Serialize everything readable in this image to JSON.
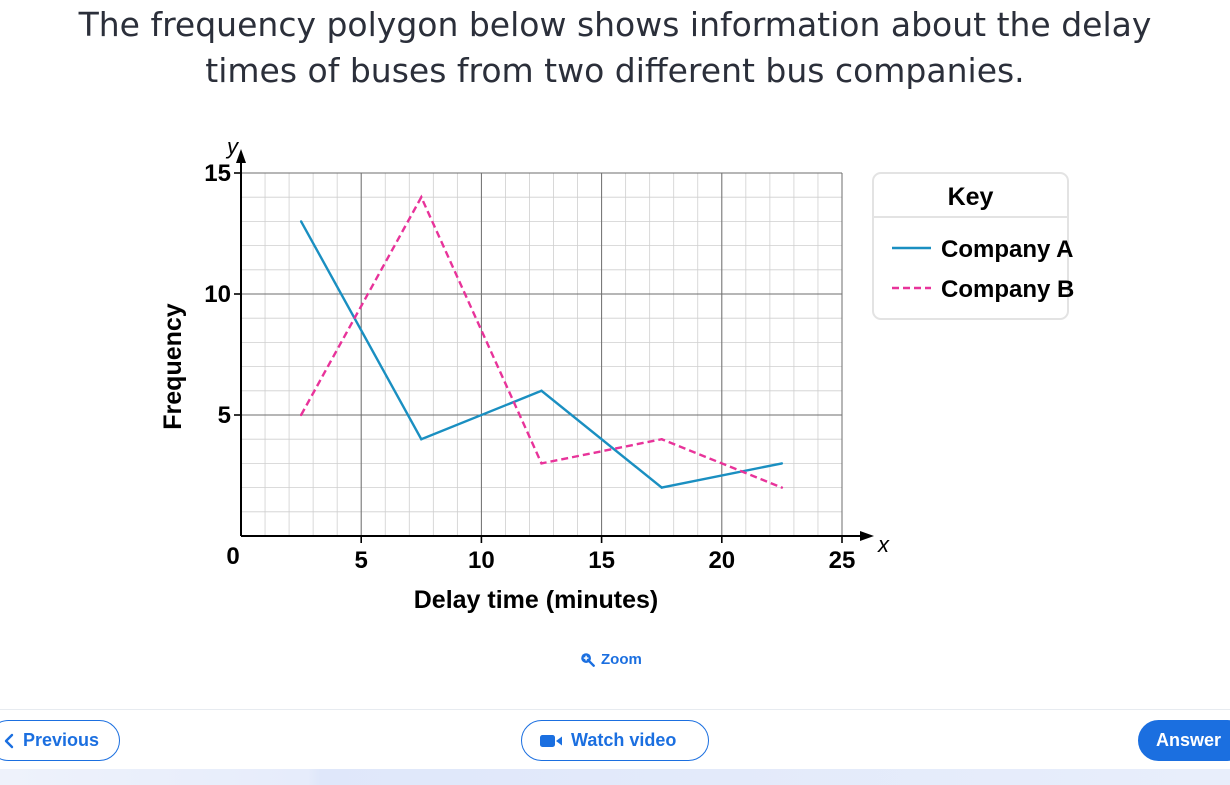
{
  "question": {
    "line1": "The frequency polygon below shows information about the delay",
    "line2": "times of buses from two different bus companies."
  },
  "chart_data": {
    "type": "line",
    "xlabel": "Delay time (minutes)",
    "ylabel": "Frequency",
    "x_axis_symbol": "x",
    "y_axis_symbol": "y",
    "origin_label": "0",
    "xlim": [
      0,
      25
    ],
    "ylim": [
      0,
      15
    ],
    "x_ticks": [
      5,
      10,
      15,
      20,
      25
    ],
    "y_ticks": [
      5,
      10,
      15
    ],
    "grid": true,
    "legend_position": "right",
    "legend_title": "Key",
    "series": [
      {
        "name": "Company A",
        "style": "solid",
        "color": "#1a8fc1",
        "x": [
          2.5,
          7.5,
          12.5,
          17.5,
          22.5
        ],
        "y": [
          13,
          4,
          6,
          2,
          3
        ]
      },
      {
        "name": "Company B",
        "style": "dashed",
        "color": "#e8339a",
        "x": [
          2.5,
          7.5,
          12.5,
          17.5,
          22.5
        ],
        "y": [
          5,
          14,
          3,
          4,
          2
        ]
      }
    ]
  },
  "zoom": {
    "label": "Zoom",
    "icon": "zoom-in-icon"
  },
  "nav": {
    "previous_label": "Previous",
    "watch_video_label": "Watch video",
    "answer_label": "Answer"
  },
  "colors": {
    "accent": "#1b6fe0"
  }
}
